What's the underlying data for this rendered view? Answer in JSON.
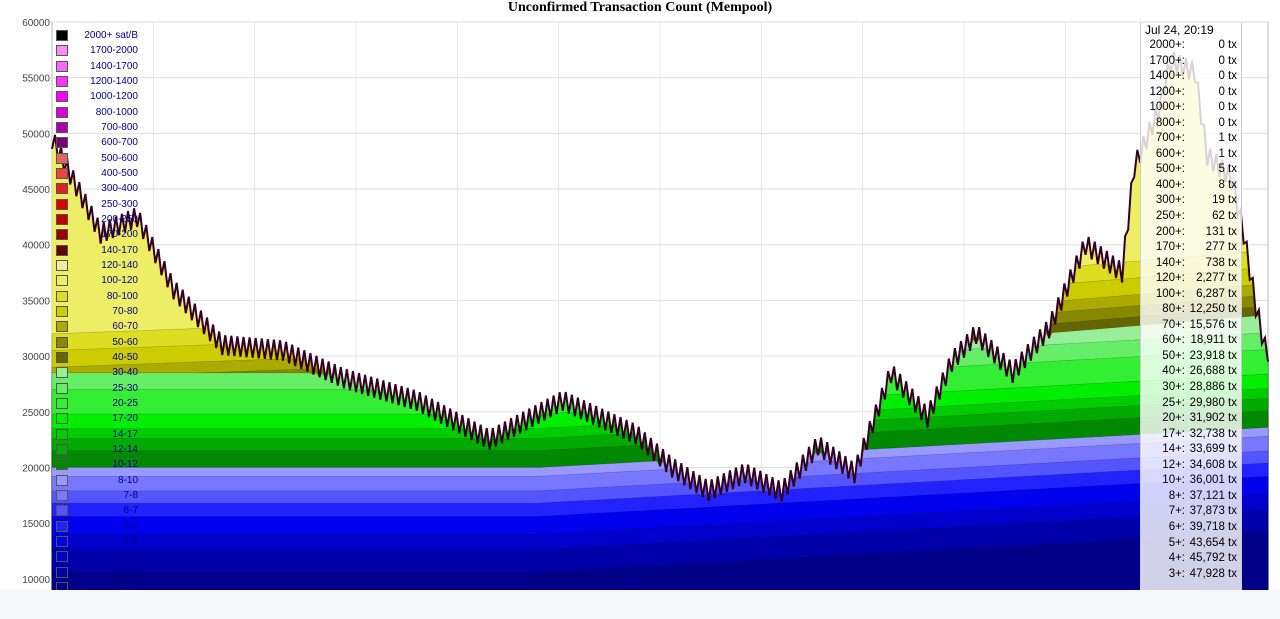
{
  "title": "Unconfirmed Transaction Count (Mempool)",
  "chart_data": {
    "type": "area",
    "title": "Unconfirmed Transaction Count (Mempool)",
    "ylim": [
      9000,
      60000
    ],
    "y_ticks": [
      "60000",
      "55000",
      "50000",
      "45000",
      "40000",
      "35000",
      "30000",
      "25000",
      "20000",
      "15000",
      "10000"
    ],
    "stacked": true,
    "legend_position": "top-left",
    "grid": true,
    "legend": [
      {
        "label": "2000+ sat/B",
        "color": "#000000"
      },
      {
        "label": "1700-2000",
        "color": "#ff8cff"
      },
      {
        "label": "1400-1700",
        "color": "#ff66ff"
      },
      {
        "label": "1200-1400",
        "color": "#ff33ff"
      },
      {
        "label": "1000-1200",
        "color": "#ff00ff"
      },
      {
        "label": "800-1000",
        "color": "#dd00dd"
      },
      {
        "label": "700-800",
        "color": "#aa00aa"
      },
      {
        "label": "600-700",
        "color": "#770077"
      },
      {
        "label": "500-600",
        "color": "#dd6666"
      },
      {
        "label": "400-500",
        "color": "#ee4444"
      },
      {
        "label": "300-400",
        "color": "#dd2222"
      },
      {
        "label": "250-300",
        "color": "#dd0000"
      },
      {
        "label": "200-250",
        "color": "#bb0000"
      },
      {
        "label": "170-200",
        "color": "#990000"
      },
      {
        "label": "140-170",
        "color": "#660000"
      },
      {
        "label": "120-140",
        "color": "#eeeea0"
      },
      {
        "label": "100-120",
        "color": "#eeee66"
      },
      {
        "label": "80-100",
        "color": "#dddd22"
      },
      {
        "label": "70-80",
        "color": "#cccc00"
      },
      {
        "label": "60-70",
        "color": "#aaaa00"
      },
      {
        "label": "50-60",
        "color": "#888800"
      },
      {
        "label": "40-50",
        "color": "#666600"
      },
      {
        "label": "30-40",
        "color": "#99ee99"
      },
      {
        "label": "25-30",
        "color": "#66ee66"
      },
      {
        "label": "20-25",
        "color": "#33ee33"
      },
      {
        "label": "17-20",
        "color": "#00ee00"
      },
      {
        "label": "14-17",
        "color": "#00cc00"
      },
      {
        "label": "12-14",
        "color": "#00aa00"
      },
      {
        "label": "10-12",
        "color": "#008800"
      },
      {
        "label": "8-10",
        "color": "#9999ff"
      },
      {
        "label": "7-8",
        "color": "#7777ff"
      },
      {
        "label": "6-7",
        "color": "#5555ff"
      },
      {
        "label": "5-6",
        "color": "#2222ff"
      },
      {
        "label": "4-5",
        "color": "#0000ee"
      },
      {
        "label": "3-4",
        "color": "#0000cc"
      },
      {
        "label": "2-3",
        "color": "#0000aa"
      },
      {
        "label": "1-2",
        "color": "#000088"
      }
    ],
    "series_top": {
      "name": "Total",
      "x": [
        0,
        4,
        7,
        10,
        14,
        19,
        24,
        30,
        36,
        42,
        48,
        51,
        54,
        57,
        60,
        63,
        66,
        69,
        72,
        74,
        76,
        79,
        82,
        85,
        88,
        89,
        91,
        92,
        94,
        95,
        97,
        98,
        99,
        100
      ],
      "y": [
        49500,
        41000,
        42500,
        36000,
        31000,
        30500,
        28000,
        26000,
        22500,
        26000,
        23000,
        20000,
        17900,
        19500,
        17800,
        22000,
        19500,
        28500,
        24500,
        29500,
        32000,
        28500,
        32500,
        40000,
        37500,
        47000,
        52000,
        56500,
        55500,
        48000,
        46000,
        41000,
        34500,
        29500
      ]
    },
    "bands": {
      "band_values": [
        10600,
        12600,
        14000,
        15600,
        16800,
        17900,
        19200,
        20000,
        21500,
        22600,
        23500,
        24800,
        27000,
        28500,
        29200,
        30000,
        31000,
        32000,
        33500,
        35000
      ],
      "band_names": [
        "1-2",
        "2-3",
        "3-4",
        "4-5",
        "5-6",
        "6-7",
        "7-8",
        "8-10",
        "10-12",
        "12-14",
        "14-17",
        "17-20",
        "20-25",
        "25-30",
        "30-40",
        "40-50",
        "50-60",
        "60-70",
        "70-80",
        "80-100"
      ]
    },
    "tooltip": {
      "time": "Jul 24, 20:19",
      "rows": [
        {
          "label": "2000+:",
          "value": "0 tx"
        },
        {
          "label": "1700+:",
          "value": "0 tx"
        },
        {
          "label": "1400+:",
          "value": "0 tx"
        },
        {
          "label": "1200+:",
          "value": "0 tx"
        },
        {
          "label": "1000+:",
          "value": "0 tx"
        },
        {
          "label": "800+:",
          "value": "0 tx"
        },
        {
          "label": "700+:",
          "value": "1 tx"
        },
        {
          "label": "600+:",
          "value": "1 tx"
        },
        {
          "label": "500+:",
          "value": "5 tx"
        },
        {
          "label": "400+:",
          "value": "8 tx"
        },
        {
          "label": "300+:",
          "value": "19 tx"
        },
        {
          "label": "250+:",
          "value": "62 tx"
        },
        {
          "label": "200+:",
          "value": "131 tx"
        },
        {
          "label": "170+:",
          "value": "277 tx"
        },
        {
          "label": "140+:",
          "value": "738 tx"
        },
        {
          "label": "120+:",
          "value": "2,277 tx"
        },
        {
          "label": "100+:",
          "value": "6,287 tx"
        },
        {
          "label": "80+:",
          "value": "12,250 tx"
        },
        {
          "label": "70+:",
          "value": "15,576 tx"
        },
        {
          "label": "60+:",
          "value": "18,911 tx"
        },
        {
          "label": "50+:",
          "value": "23,918 tx"
        },
        {
          "label": "40+:",
          "value": "26,688 tx"
        },
        {
          "label": "30+:",
          "value": "28,886 tx"
        },
        {
          "label": "25+:",
          "value": "29,980 tx"
        },
        {
          "label": "20+:",
          "value": "31,902 tx"
        },
        {
          "label": "17+:",
          "value": "32,738 tx"
        },
        {
          "label": "14+:",
          "value": "33,699 tx"
        },
        {
          "label": "12+:",
          "value": "34,608 tx"
        },
        {
          "label": "10+:",
          "value": "36,001 tx"
        },
        {
          "label": "8+:",
          "value": "37,121 tx"
        },
        {
          "label": "7+:",
          "value": "37,873 tx"
        },
        {
          "label": "6+:",
          "value": "39,718 tx"
        },
        {
          "label": "5+:",
          "value": "43,654 tx"
        },
        {
          "label": "4+:",
          "value": "45,792 tx"
        },
        {
          "label": "3+:",
          "value": "47,928 tx"
        }
      ]
    }
  }
}
